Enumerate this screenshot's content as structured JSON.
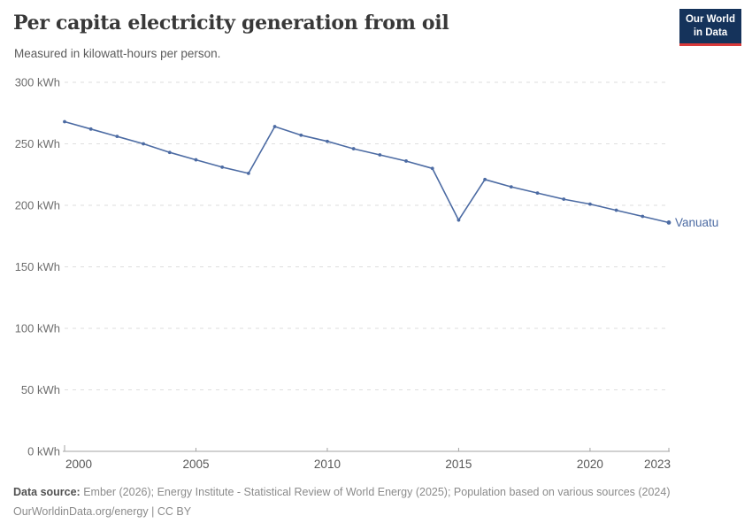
{
  "header": {
    "logo": {
      "line1": "Our World",
      "line2": "in Data",
      "bg_color": "#15335b",
      "accent_color": "#d93a3a"
    }
  },
  "chart_data": {
    "type": "line",
    "title": "Per capita electricity generation from oil",
    "subtitle": "Measured in kilowatt-hours per person.",
    "x": [
      2000,
      2001,
      2002,
      2003,
      2004,
      2005,
      2006,
      2007,
      2008,
      2009,
      2010,
      2011,
      2012,
      2013,
      2014,
      2015,
      2016,
      2017,
      2018,
      2019,
      2020,
      2021,
      2022,
      2023
    ],
    "series": [
      {
        "name": "Vanuatu",
        "color": "#4c6ba3",
        "values": [
          268,
          262,
          256,
          250,
          243,
          237,
          231,
          226,
          264,
          257,
          252,
          246,
          241,
          236,
          230,
          188,
          221,
          215,
          210,
          205,
          201,
          196,
          191,
          186
        ]
      }
    ],
    "x_ticks": [
      2000,
      2005,
      2010,
      2015,
      2020,
      2023
    ],
    "y_ticks": [
      0,
      50,
      100,
      150,
      200,
      250,
      300
    ],
    "y_tick_suffix": " kWh",
    "xlim": [
      2000,
      2023
    ],
    "ylim": [
      0,
      300
    ],
    "grid": "horizontal-dashed",
    "legend_position": "end-of-line-label",
    "end_label": "Vanuatu"
  },
  "footer": {
    "data_source_label": "Data source:",
    "data_source_text": " Ember (2026); Energy Institute - Statistical Review of World Energy (2025); Population based on various sources (2024)",
    "link_text": "OurWorldinData.org/energy",
    "separator": " | ",
    "license": "CC BY"
  }
}
